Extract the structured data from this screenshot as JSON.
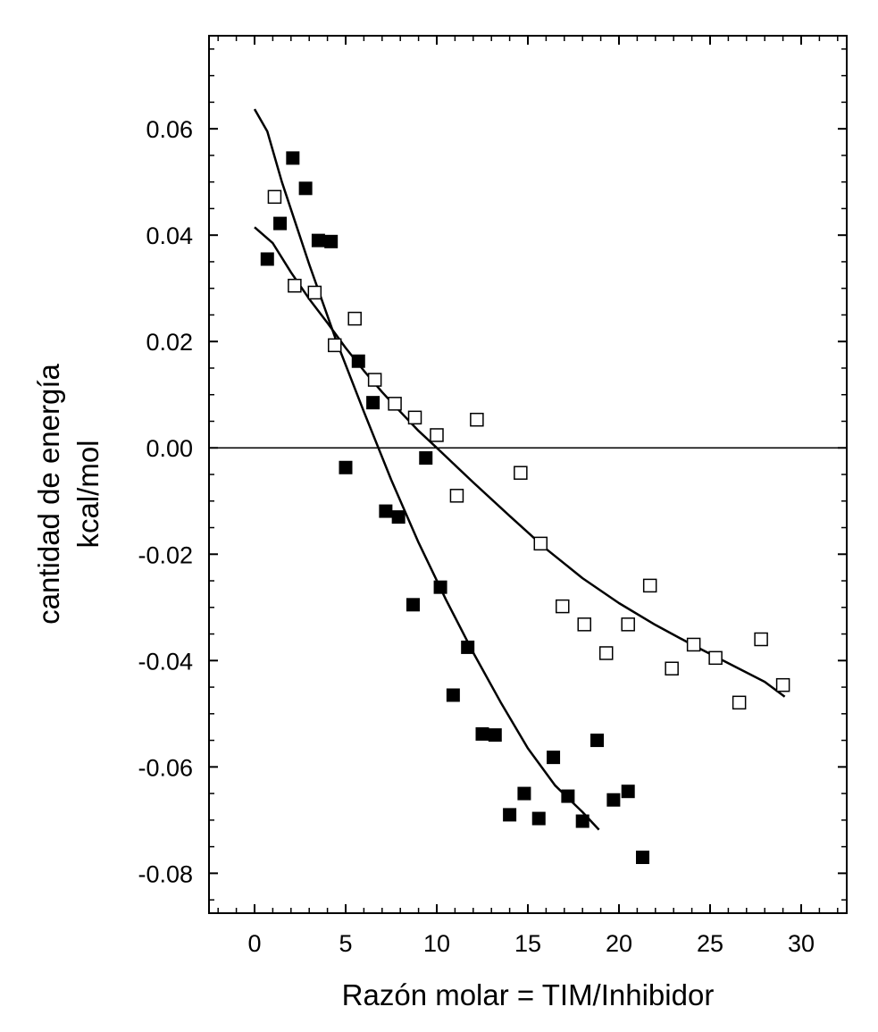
{
  "chart_data": {
    "type": "scatter",
    "xlabel": "Razón molar = TIM/Inhibidor",
    "ylabel_lines": [
      "cantidad de energía",
      "kcal/mol"
    ],
    "xlim": [
      -2.5,
      32.5
    ],
    "ylim": [
      -0.0875,
      0.0775
    ],
    "x_ticks": [
      0,
      5,
      10,
      15,
      20,
      25,
      30
    ],
    "x_tick_labels": [
      "0",
      "5",
      "10",
      "15",
      "20",
      "25",
      "30"
    ],
    "y_ticks": [
      0.06,
      0.04,
      0.02,
      0.0,
      -0.02,
      -0.04,
      -0.06,
      -0.08
    ],
    "y_tick_labels": [
      "0.06",
      "0.04",
      "0.02",
      "0.00",
      "-0.02",
      "-0.04",
      "-0.06",
      "-0.08"
    ],
    "x_minor_step": 1,
    "y_minor_step": 0.005,
    "reference_line_y": 0,
    "grid": false,
    "colors": {
      "axis": "#000000",
      "filled_marker": "#000000",
      "open_marker_fill": "#ffffff"
    },
    "series": [
      {
        "marker": "filled-square",
        "points": [
          [
            0.7,
            0.0355
          ],
          [
            1.4,
            0.0422
          ],
          [
            2.1,
            0.0545
          ],
          [
            2.8,
            0.0488
          ],
          [
            3.5,
            0.039
          ],
          [
            4.2,
            0.0388
          ],
          [
            5.0,
            -0.0037
          ],
          [
            5.7,
            0.0163
          ],
          [
            6.5,
            0.0085
          ],
          [
            7.2,
            -0.0119
          ],
          [
            7.9,
            -0.013
          ],
          [
            8.7,
            -0.0295
          ],
          [
            9.4,
            -0.0019
          ],
          [
            10.2,
            -0.0262
          ],
          [
            10.9,
            -0.0465
          ],
          [
            11.7,
            -0.0375
          ],
          [
            12.5,
            -0.0538
          ],
          [
            13.2,
            -0.054
          ],
          [
            14.0,
            -0.069
          ],
          [
            14.8,
            -0.065
          ],
          [
            15.6,
            -0.0697
          ],
          [
            16.4,
            -0.0582
          ],
          [
            17.2,
            -0.0655
          ],
          [
            18.0,
            -0.0702
          ],
          [
            18.8,
            -0.055
          ],
          [
            19.7,
            -0.0662
          ],
          [
            20.5,
            -0.0646
          ],
          [
            21.3,
            -0.077
          ]
        ],
        "fit": [
          [
            0,
            0.0637
          ],
          [
            0.7,
            0.0595
          ],
          [
            1.5,
            0.05
          ],
          [
            3,
            0.0345
          ],
          [
            4.5,
            0.02
          ],
          [
            6,
            0.0068
          ],
          [
            7.5,
            -0.006
          ],
          [
            9,
            -0.0178
          ],
          [
            10.5,
            -0.0285
          ],
          [
            12,
            -0.0385
          ],
          [
            13.5,
            -0.0478
          ],
          [
            15,
            -0.0565
          ],
          [
            16.5,
            -0.0635
          ],
          [
            18,
            -0.0685
          ],
          [
            18.9,
            -0.0718
          ]
        ]
      },
      {
        "marker": "open-square",
        "points": [
          [
            1.1,
            0.0472
          ],
          [
            2.2,
            0.0305
          ],
          [
            3.3,
            0.0292
          ],
          [
            4.4,
            0.0193
          ],
          [
            5.5,
            0.0243
          ],
          [
            6.6,
            0.0128
          ],
          [
            7.7,
            0.0083
          ],
          [
            8.8,
            0.0057
          ],
          [
            10.0,
            0.0024
          ],
          [
            11.1,
            -0.009
          ],
          [
            12.2,
            0.0053
          ],
          [
            14.6,
            -0.0047
          ],
          [
            15.7,
            -0.018
          ],
          [
            16.9,
            -0.0298
          ],
          [
            18.1,
            -0.0332
          ],
          [
            19.3,
            -0.0386
          ],
          [
            20.5,
            -0.0332
          ],
          [
            21.7,
            -0.0259
          ],
          [
            22.9,
            -0.0415
          ],
          [
            24.1,
            -0.037
          ],
          [
            25.3,
            -0.0395
          ],
          [
            26.6,
            -0.0479
          ],
          [
            27.8,
            -0.036
          ],
          [
            29.0,
            -0.0446
          ]
        ],
        "fit": [
          [
            0,
            0.0415
          ],
          [
            1,
            0.0385
          ],
          [
            2,
            0.033
          ],
          [
            3,
            0.028
          ],
          [
            4,
            0.0235
          ],
          [
            5,
            0.0188
          ],
          [
            6,
            0.0145
          ],
          [
            7,
            0.0105
          ],
          [
            8,
            0.0068
          ],
          [
            9,
            0.0032
          ],
          [
            10,
            0.0
          ],
          [
            12,
            -0.0065
          ],
          [
            14,
            -0.0128
          ],
          [
            16,
            -0.019
          ],
          [
            18,
            -0.0245
          ],
          [
            20,
            -0.0292
          ],
          [
            22,
            -0.0333
          ],
          [
            24,
            -0.037
          ],
          [
            26,
            -0.0405
          ],
          [
            28,
            -0.044
          ],
          [
            29.1,
            -0.0468
          ]
        ]
      }
    ]
  }
}
